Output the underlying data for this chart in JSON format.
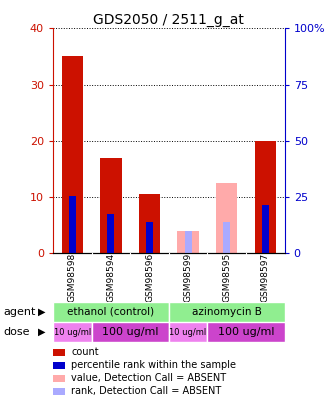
{
  "title": "GDS2050 / 2511_g_at",
  "samples": [
    "GSM98598",
    "GSM98594",
    "GSM98596",
    "GSM98599",
    "GSM98595",
    "GSM98597"
  ],
  "count_values": [
    35.0,
    17.0,
    10.5,
    0,
    0,
    20.0
  ],
  "rank_values_pct": [
    25.5,
    17.5,
    14.0,
    0,
    0,
    21.5
  ],
  "absent_count_values": [
    0,
    0,
    0,
    4.0,
    12.5,
    0
  ],
  "absent_rank_values_pct": [
    0,
    0,
    0,
    10.0,
    14.0,
    0
  ],
  "is_absent": [
    false,
    false,
    false,
    true,
    true,
    false
  ],
  "ylim": [
    0,
    40
  ],
  "y2lim": [
    0,
    100
  ],
  "yticks": [
    0,
    10,
    20,
    30,
    40
  ],
  "y2ticks": [
    0,
    25,
    50,
    75,
    100
  ],
  "y2ticklabels": [
    "0",
    "25",
    "50",
    "75",
    "100%"
  ],
  "count_color": "#CC1100",
  "rank_color": "#0000CC",
  "absent_count_color": "#FFAAAA",
  "absent_rank_color": "#AAAAFF",
  "agent_row": [
    {
      "label": "ethanol (control)",
      "span": [
        0,
        3
      ],
      "color": "#90EE90"
    },
    {
      "label": "azinomycin B",
      "span": [
        3,
        6
      ],
      "color": "#90EE90"
    }
  ],
  "dose_row": [
    {
      "label": "10 ug/ml",
      "span": [
        0,
        1
      ],
      "color": "#EE82EE",
      "fontsize": 6
    },
    {
      "label": "100 ug/ml",
      "span": [
        1,
        3
      ],
      "color": "#CC44CC",
      "fontsize": 8
    },
    {
      "label": "10 ug/ml",
      "span": [
        3,
        4
      ],
      "color": "#EE82EE",
      "fontsize": 6
    },
    {
      "label": "100 ug/ml",
      "span": [
        4,
        6
      ],
      "color": "#CC44CC",
      "fontsize": 8
    }
  ],
  "xticklabel_bg": "#C0C0C0",
  "legend_items": [
    {
      "color": "#CC1100",
      "label": "count"
    },
    {
      "color": "#0000CC",
      "label": "percentile rank within the sample"
    },
    {
      "color": "#FFAAAA",
      "label": "value, Detection Call = ABSENT"
    },
    {
      "color": "#AAAAFF",
      "label": "rank, Detection Call = ABSENT"
    }
  ]
}
